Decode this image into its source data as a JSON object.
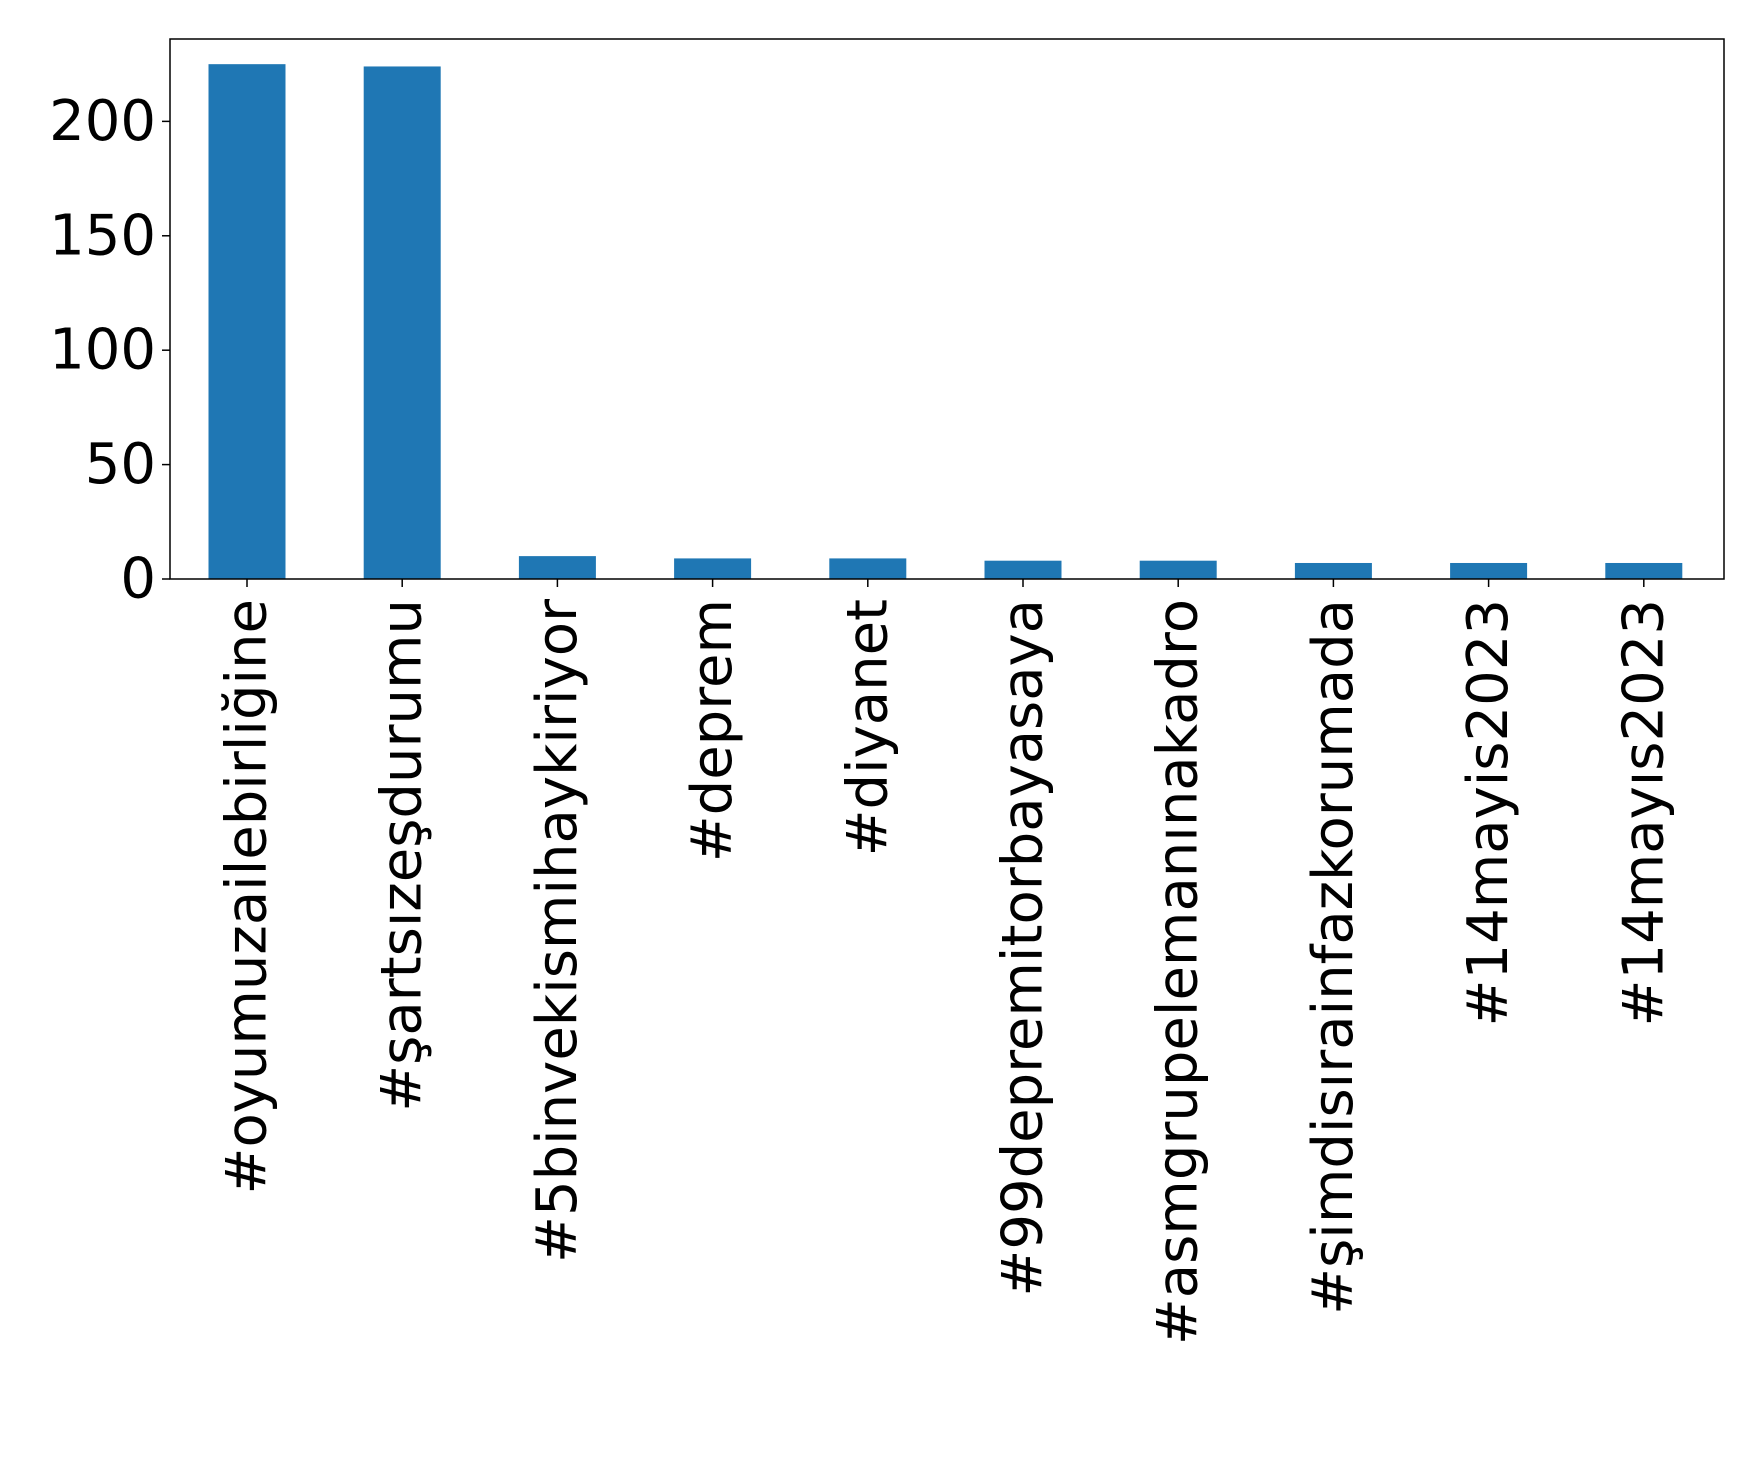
{
  "chart_data": {
    "type": "bar",
    "title": "",
    "xlabel": "",
    "ylabel": "",
    "categories": [
      "#oyumuzailebirliğine",
      "#şartsızeşdurumu",
      "#5binvekismihaykiriyor",
      "#deprem",
      "#diyanet",
      "#99depremitorbayasaya",
      "#asmgrupelemanınakadro",
      "#şimdisırainfazkorumada",
      "#14mayis2023",
      "#14mayıs2023"
    ],
    "values": [
      225,
      224,
      10,
      9,
      9,
      8,
      8,
      7,
      7,
      7
    ],
    "ylim": [
      0,
      236
    ],
    "yticks": [
      0,
      50,
      100,
      150,
      200
    ],
    "grid": false,
    "legend": "none",
    "colors": {
      "bar": "#1f77b4",
      "axis": "#000000"
    }
  }
}
